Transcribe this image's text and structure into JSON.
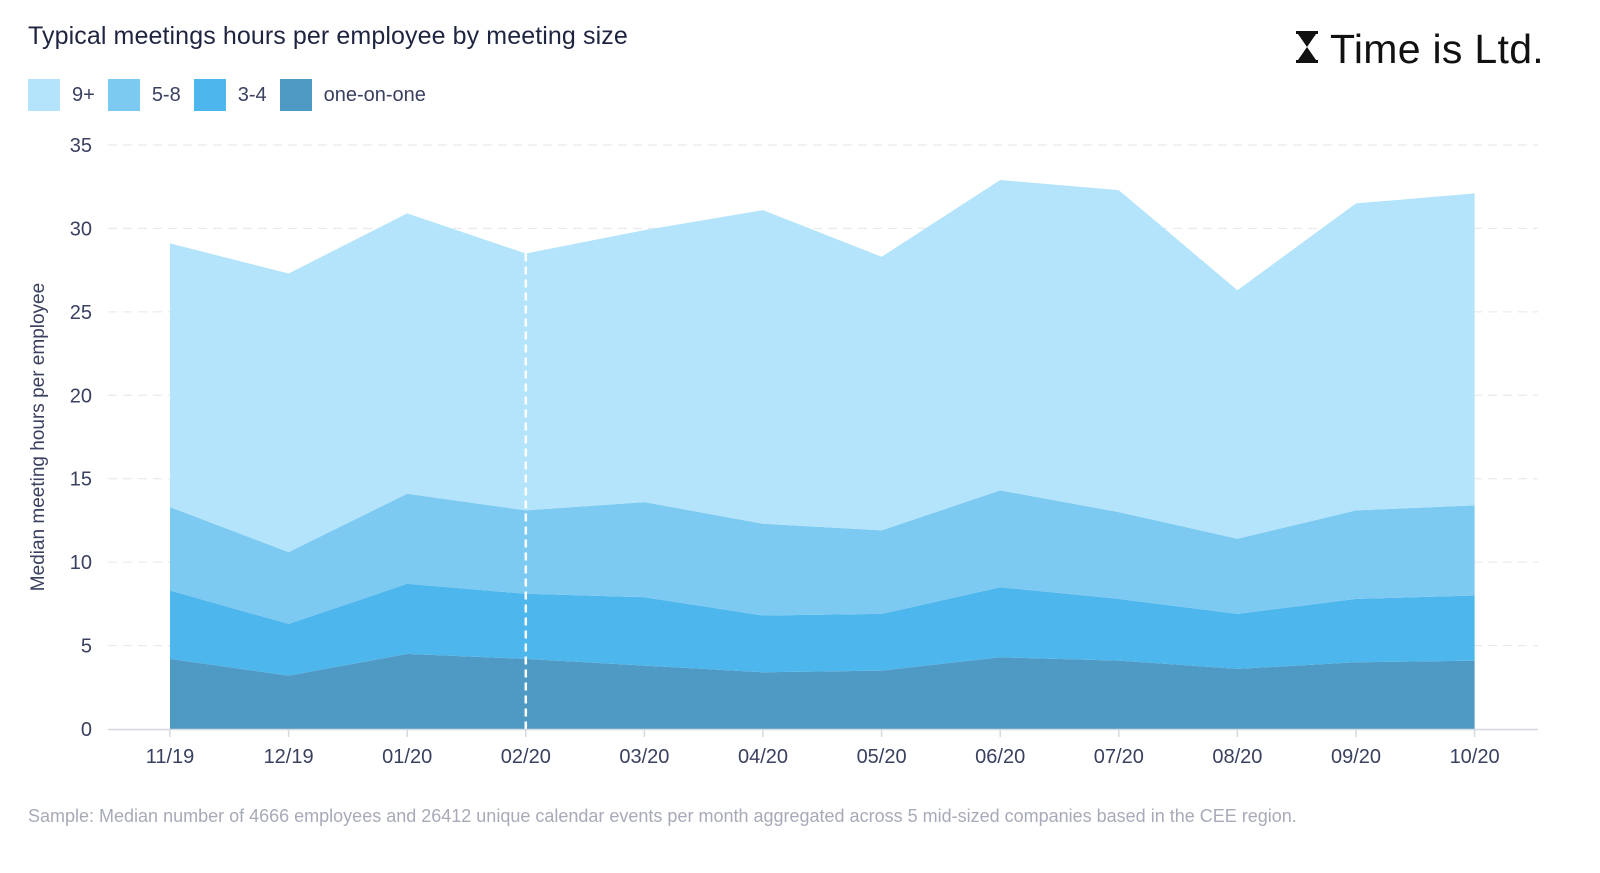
{
  "header": {
    "title": "Typical meetings hours per employee by meeting size",
    "brand": "Time is Ltd."
  },
  "footnote": "Sample: Median number of 4666 employees and 26412 unique calendar events per month aggregated across 5 mid-sized companies based in the CEE region.",
  "chart_data": {
    "type": "area",
    "stacked": true,
    "title": "Typical meetings hours per employee by meeting size",
    "ylabel": "Median meeting hours per employee",
    "xlabel": "",
    "ylim": [
      0,
      35
    ],
    "yticks": [
      0,
      5,
      10,
      15,
      20,
      25,
      30,
      35
    ],
    "grid": "horizontal-dashed",
    "legend_position": "top-left",
    "categories": [
      "11/19",
      "12/19",
      "01/20",
      "02/20",
      "03/20",
      "04/20",
      "05/20",
      "06/20",
      "07/20",
      "08/20",
      "09/20",
      "10/20"
    ],
    "highlight_category": "02/20",
    "series": [
      {
        "name": "one-on-one",
        "color": "#4f9ac4",
        "values": [
          4.2,
          3.2,
          4.5,
          4.2,
          3.8,
          3.4,
          3.5,
          4.3,
          4.1,
          3.6,
          4.0,
          4.1
        ]
      },
      {
        "name": "3-4",
        "color": "#4db6ec",
        "values": [
          4.1,
          3.1,
          4.2,
          3.9,
          4.1,
          3.4,
          3.4,
          4.2,
          3.7,
          3.3,
          3.8,
          3.9
        ]
      },
      {
        "name": "5-8",
        "color": "#7cc9f2",
        "values": [
          5.0,
          4.3,
          5.4,
          5.0,
          5.7,
          5.5,
          5.0,
          5.8,
          5.2,
          4.5,
          5.3,
          5.4
        ]
      },
      {
        "name": "9+",
        "color": "#b3e4fb",
        "values": [
          15.8,
          16.7,
          16.8,
          15.4,
          16.3,
          18.8,
          16.4,
          18.6,
          19.3,
          14.9,
          18.4,
          18.7
        ]
      }
    ],
    "legend_order": [
      "9+",
      "5-8",
      "3-4",
      "one-on-one"
    ]
  }
}
